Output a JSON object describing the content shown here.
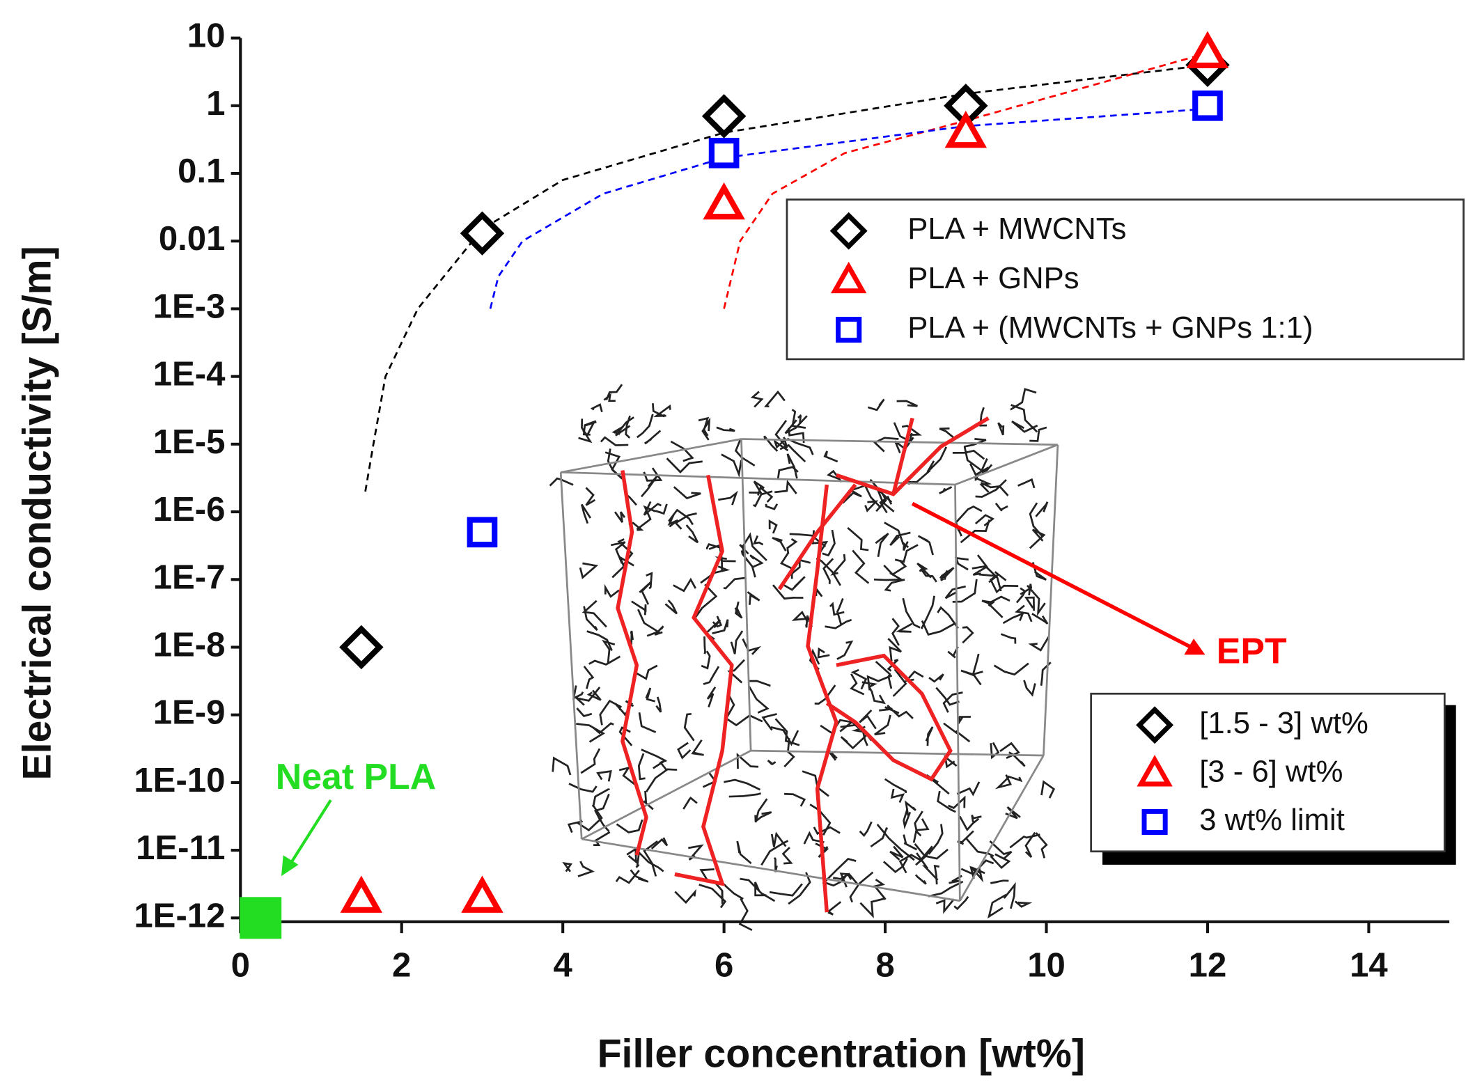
{
  "chart_data": {
    "type": "scatter",
    "x_label": "Filler concentration [wt%]",
    "y_label": "Electrical conductivity [S/m]",
    "log_y": true,
    "xlim": [
      0,
      15
    ],
    "xticks": [
      0,
      2,
      4,
      6,
      8,
      10,
      12,
      14
    ],
    "ylim": [
      1e-12,
      10
    ],
    "yticks": [
      10,
      1,
      0.1,
      0.01,
      {
        "value": 0.001,
        "label": "1E-3"
      },
      {
        "value": 0.0001,
        "label": "1E-4"
      },
      {
        "value": 1e-05,
        "label": "1E-5"
      },
      {
        "value": 1e-06,
        "label": "1E-6"
      },
      {
        "value": 1e-07,
        "label": "1E-7"
      },
      {
        "value": 1e-08,
        "label": "1E-8"
      },
      {
        "value": 1e-09,
        "label": "1E-9"
      },
      {
        "value": 1e-10,
        "label": "1E-10"
      },
      {
        "value": 1e-11,
        "label": "1E-11"
      },
      {
        "value": 1e-12,
        "label": "1E-12"
      }
    ],
    "series": [
      {
        "name": "PLA + MWCNTs",
        "color": "#000000",
        "marker": "diamond",
        "x": [
          1.5,
          3,
          6,
          9,
          12
        ],
        "values": [
          1e-08,
          0.013,
          0.7,
          1,
          4
        ]
      },
      {
        "name": "PLA + GNPs",
        "color": "#ff0000",
        "marker": "triangle",
        "x": [
          1.5,
          3,
          6,
          9,
          12
        ],
        "values": [
          2e-12,
          2e-12,
          0.035,
          0.4,
          6
        ]
      },
      {
        "name": "PLA + (MWCNTs + GNPs 1:1)",
        "color": "#0000ff",
        "marker": "square",
        "x": [
          3,
          6,
          12
        ],
        "values": [
          5e-07,
          0.2,
          1
        ]
      }
    ],
    "fit_curves": [
      {
        "name": "[1.5 - 3] wt%",
        "color": "#000000",
        "marker": "diamond",
        "x": [
          1.55,
          1.65,
          1.8,
          2.2,
          3,
          4,
          6,
          9,
          12
        ],
        "values": [
          2e-06,
          1e-05,
          0.0001,
          0.001,
          0.015,
          0.08,
          0.4,
          1.5,
          4
        ]
      },
      {
        "name": "[3 - 6] wt%",
        "color": "#ff0000",
        "marker": "triangle",
        "x": [
          6,
          6.2,
          6.6,
          7.5,
          9,
          12
        ],
        "values": [
          0.001,
          0.01,
          0.05,
          0.2,
          0.6,
          6
        ]
      },
      {
        "name": "3 wt% limit",
        "color": "#0000ff",
        "marker": "square",
        "x": [
          3.1,
          3.2,
          3.5,
          4.5,
          6,
          9,
          12
        ],
        "values": [
          0.001,
          0.003,
          0.01,
          0.05,
          0.17,
          0.5,
          0.9
        ]
      }
    ],
    "annotations": [
      {
        "text": "Neat PLA",
        "color": "#22dd22",
        "x": 0.25,
        "y": 1e-12
      },
      {
        "text": "EPT",
        "color": "#ff0000"
      }
    ]
  }
}
